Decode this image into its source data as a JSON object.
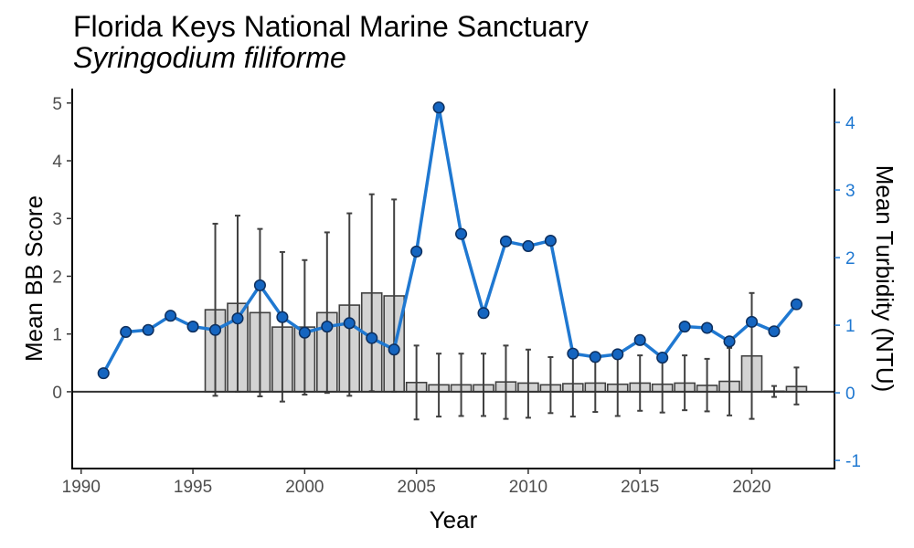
{
  "chart_data": {
    "type": "bar",
    "title": "Florida Keys National Marine Sanctuary",
    "subtitle": "Syringodium filiforme",
    "xlabel": "Year",
    "ylabel": "Mean BB Score",
    "y2label": "Mean Turbidity (NTU)",
    "xlim": [
      1989.6,
      2023.7
    ],
    "ylim": [
      -1.33,
      5.25
    ],
    "y2lim": [
      -1.12,
      4.5
    ],
    "xticks": [
      1990,
      1995,
      2000,
      2005,
      2010,
      2015,
      2020
    ],
    "yticks": [
      0,
      1,
      2,
      3,
      4,
      5
    ],
    "y2ticks": [
      -1,
      0,
      1,
      2,
      3,
      4
    ],
    "grid": false,
    "legend": "none",
    "colors": {
      "bar_fill": "#d3d3d3",
      "bar_stroke": "#404040",
      "errorbar": "#404040",
      "line": "#1f78d1",
      "point_fill": "#1565c0",
      "point_stroke": "#0d2f5e",
      "y2_text": "#1f78d1"
    },
    "bars": {
      "name": "Mean BB Score",
      "x": [
        1996,
        1997,
        1998,
        1999,
        2000,
        2001,
        2002,
        2003,
        2004,
        2005,
        2006,
        2007,
        2008,
        2009,
        2010,
        2011,
        2012,
        2013,
        2014,
        2015,
        2016,
        2017,
        2018,
        2019,
        2020,
        2021,
        2022
      ],
      "values": [
        1.42,
        1.53,
        1.37,
        1.12,
        1.12,
        1.37,
        1.5,
        1.71,
        1.66,
        0.16,
        0.12,
        0.12,
        0.12,
        0.17,
        0.15,
        0.12,
        0.14,
        0.15,
        0.13,
        0.15,
        0.13,
        0.15,
        0.11,
        0.18,
        0.62,
        0.01,
        0.09
      ],
      "err_low": [
        -0.07,
        0.0,
        -0.08,
        -0.17,
        -0.05,
        -0.02,
        -0.07,
        0.01,
        0.0,
        -0.48,
        -0.43,
        -0.42,
        -0.42,
        -0.47,
        -0.45,
        -0.37,
        -0.43,
        -0.35,
        -0.42,
        -0.33,
        -0.36,
        -0.32,
        -0.34,
        -0.41,
        -0.47,
        -0.09,
        -0.22
      ],
      "err_high": [
        2.91,
        3.05,
        2.82,
        2.42,
        2.28,
        2.76,
        3.09,
        3.42,
        3.33,
        0.8,
        0.66,
        0.66,
        0.66,
        0.8,
        0.73,
        0.6,
        0.71,
        0.65,
        0.66,
        0.63,
        0.62,
        0.63,
        0.57,
        0.76,
        1.71,
        0.1,
        0.42
      ]
    },
    "line": {
      "name": "Mean Turbidity (NTU)",
      "x": [
        1991,
        1992,
        1993,
        1994,
        1995,
        1996,
        1997,
        1998,
        1999,
        2000,
        2001,
        2002,
        2003,
        2004,
        2005,
        2006,
        2007,
        2008,
        2009,
        2010,
        2011,
        2012,
        2013,
        2014,
        2015,
        2016,
        2017,
        2018,
        2019,
        2020,
        2021,
        2022
      ],
      "values": [
        0.29,
        0.9,
        0.93,
        1.14,
        0.98,
        0.93,
        1.1,
        1.59,
        1.12,
        0.89,
        0.98,
        1.03,
        0.81,
        0.64,
        2.09,
        4.22,
        2.35,
        1.18,
        2.24,
        2.17,
        2.25,
        0.58,
        0.53,
        0.57,
        0.78,
        0.52,
        0.98,
        0.96,
        0.76,
        1.05,
        0.91,
        1.31
      ]
    }
  }
}
